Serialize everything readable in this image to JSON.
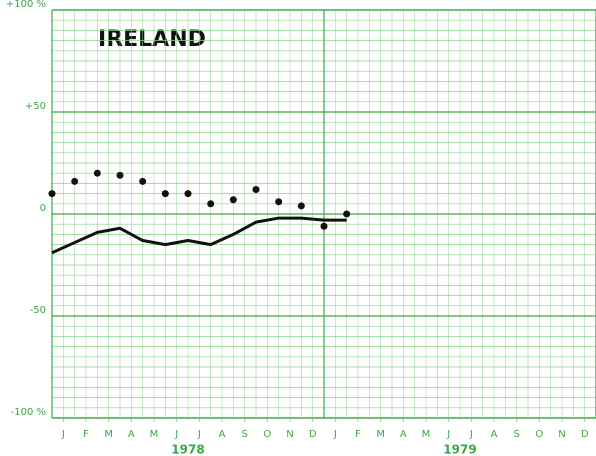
{
  "chart_data": {
    "type": "line",
    "title": "IRELAND",
    "x": [
      0,
      1,
      2,
      3,
      4,
      5,
      6,
      7,
      8,
      9,
      10,
      11,
      12,
      13
    ],
    "xlim": [
      0,
      24
    ],
    "xticks": [
      {
        "value": 0.5,
        "label": "J"
      },
      {
        "value": 1.5,
        "label": "F"
      },
      {
        "value": 2.5,
        "label": "M"
      },
      {
        "value": 3.5,
        "label": "A"
      },
      {
        "value": 4.5,
        "label": "M"
      },
      {
        "value": 5.5,
        "label": "J"
      },
      {
        "value": 6.5,
        "label": "J"
      },
      {
        "value": 7.5,
        "label": "A"
      },
      {
        "value": 8.5,
        "label": "S"
      },
      {
        "value": 9.5,
        "label": "O"
      },
      {
        "value": 10.5,
        "label": "N"
      },
      {
        "value": 11.5,
        "label": "D"
      },
      {
        "value": 12.5,
        "label": "J"
      },
      {
        "value": 13.5,
        "label": "F"
      },
      {
        "value": 14.5,
        "label": "M"
      },
      {
        "value": 15.5,
        "label": "A"
      },
      {
        "value": 16.5,
        "label": "M"
      },
      {
        "value": 17.5,
        "label": "J"
      },
      {
        "value": 18.5,
        "label": "J"
      },
      {
        "value": 19.5,
        "label": "A"
      },
      {
        "value": 20.5,
        "label": "S"
      },
      {
        "value": 21.5,
        "label": "O"
      },
      {
        "value": 22.5,
        "label": "N"
      },
      {
        "value": 23.5,
        "label": "D"
      }
    ],
    "years": [
      {
        "value": 6,
        "label": "1978"
      },
      {
        "value": 18,
        "label": "1979"
      }
    ],
    "ylim": [
      -100,
      100
    ],
    "yticks": [
      {
        "value": 100,
        "label": "+100 %"
      },
      {
        "value": 50,
        "label": "+50"
      },
      0,
      -50,
      {
        "value": -100,
        "label": "-100 %"
      }
    ],
    "grid": true,
    "grid_color": "#8fd08f",
    "series": [
      {
        "style": "line",
        "color": "#111111",
        "values": [
          -19,
          -14,
          -9,
          -7,
          -13,
          -15,
          -13,
          -15,
          -10,
          -4,
          -2,
          -2,
          -3,
          -3
        ]
      },
      {
        "style": "dots",
        "color": "#111111",
        "values": [
          10,
          16,
          20,
          19,
          16,
          10,
          10,
          5,
          7,
          12,
          6,
          4,
          -6,
          0
        ]
      }
    ]
  }
}
